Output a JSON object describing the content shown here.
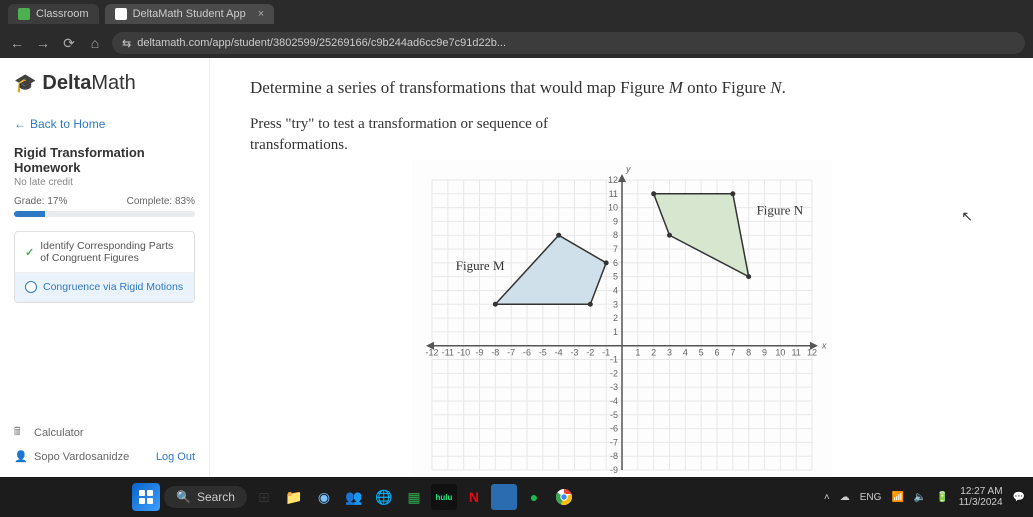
{
  "browser": {
    "tabs": [
      {
        "label": "Classroom"
      },
      {
        "label": "DeltaMath Student App"
      }
    ],
    "url": "deltamath.com/app/student/3802599/25269166/c9b244ad6cc9e7c91d22b..."
  },
  "sidebar": {
    "brand_a": "Delta",
    "brand_b": "Math",
    "back_label": "Back to Home",
    "assignment_title": "Rigid Transformation Homework",
    "late_label": "No late credit",
    "grade_label": "Grade: 17%",
    "complete_label": "Complete: 83%",
    "progress_pct": 17,
    "topics": [
      {
        "label": "Identify Corresponding Parts of Congruent Figures",
        "done": true
      },
      {
        "label": "Congruence via Rigid Motions",
        "done": false,
        "active": true
      }
    ],
    "calculator_label": "Calculator",
    "user_label": "Sopo Vardosanidze",
    "logout_label": "Log Out"
  },
  "question": {
    "prompt_prefix": "Determine a series of transformations that would map Figure ",
    "prompt_mid": " onto Figure ",
    "prompt_end": ".",
    "fig_m": "M",
    "fig_n": "N",
    "instructions_a": "Press \"try\" to test a transformation or sequence of",
    "instructions_b": "transformations."
  },
  "graph": {
    "x_min": -12,
    "x_max": 12,
    "y_min": -9,
    "y_max": 12,
    "x_axis_var": "x",
    "y_axis_var": "y",
    "grid_color": "#e8e8e8",
    "axis_color": "#555",
    "tick_color": "#666",
    "figure_m": {
      "label": "Figure M",
      "fill": "#cfe0ea",
      "stroke": "#333",
      "points": [
        [
          -8,
          3
        ],
        [
          -4,
          8
        ],
        [
          -1,
          6
        ],
        [
          -2,
          3
        ]
      ]
    },
    "figure_n": {
      "label": "Figure N",
      "fill": "#d7e6cf",
      "stroke": "#333",
      "points": [
        [
          2,
          11
        ],
        [
          7,
          11
        ],
        [
          8,
          5
        ],
        [
          3,
          8
        ]
      ]
    }
  },
  "taskbar": {
    "search_placeholder": "Search",
    "lang": "ENG",
    "time": "12:27 AM",
    "date": "11/3/2024"
  },
  "colors": {
    "accent": "#2f78c4",
    "browser_bg": "#2b2b2b",
    "taskbar_bg": "#1c1c1c"
  }
}
